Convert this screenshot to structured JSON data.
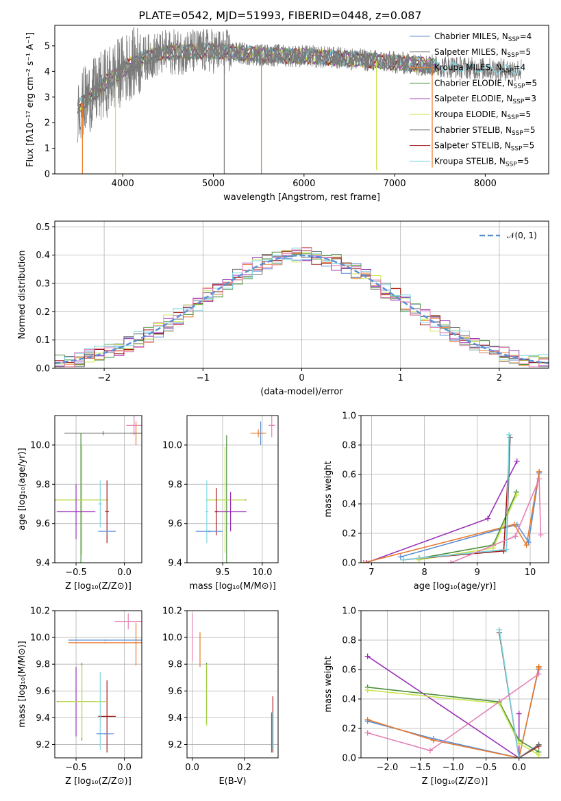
{
  "colors": {
    "chabrier_miles": "#5b8fd6",
    "salpeter_miles": "#7a7a7a",
    "kroupa_miles": "#e8792a",
    "chabrier_elodie": "#4c8f3c",
    "salpeter_elodie": "#9b30b8",
    "kroupa_elodie": "#c8e64a",
    "chabrier_stelib": "#6d6d6d",
    "salpeter_stelib": "#a01818",
    "kroupa_stelib": "#7fd6e0",
    "pink": "#e57fb4",
    "normal": "#5b8fd6"
  },
  "chart_data": [
    {
      "id": "spectrum",
      "type": "line",
      "title": "PLATE=0542, MJD=51993, FIBERID=0448, z=0.087",
      "xlabel": "wavelength [Angstrom, rest frame]",
      "ylabel": "Flux [fλ10⁻¹⁷ erg cm⁻² s⁻¹ A⁻¹]",
      "xlim": [
        3250,
        8700
      ],
      "ylim": [
        0,
        5.8
      ],
      "xticks": [
        "4000",
        "5000",
        "6000",
        "7000",
        "8000"
      ],
      "xtick_values": [
        4000,
        5000,
        6000,
        7000,
        8000
      ],
      "yticks": [
        "0",
        "1",
        "2",
        "3",
        "4",
        "5"
      ],
      "ytick_values": [
        0,
        1,
        2,
        3,
        4,
        5
      ],
      "grid": false,
      "legend_loc": "top-right",
      "legend": [
        {
          "label": "Chabrier MILES, N",
          "sub": "SSP",
          "n": "=4",
          "color_key": "chabrier_miles"
        },
        {
          "label": "Salpeter MILES, N",
          "sub": "SSP",
          "n": "=5",
          "color_key": "salpeter_miles"
        },
        {
          "label": "Kroupa MILES, N",
          "sub": "SSP",
          "n": "=4",
          "color_key": "kroupa_miles"
        },
        {
          "label": "Chabrier ELODIE, N",
          "sub": "SSP",
          "n": "=5",
          "color_key": "chabrier_elodie"
        },
        {
          "label": "Salpeter ELODIE, N",
          "sub": "SSP",
          "n": "=3",
          "color_key": "salpeter_elodie"
        },
        {
          "label": "Kroupa ELODIE, N",
          "sub": "SSP",
          "n": "=5",
          "color_key": "kroupa_elodie"
        },
        {
          "label": "Chabrier STELIB, N",
          "sub": "SSP",
          "n": "=5",
          "color_key": "chabrier_stelib"
        },
        {
          "label": "Salpeter STELIB, N",
          "sub": "SSP",
          "n": "=5",
          "color_key": "salpeter_stelib"
        },
        {
          "label": "Kroupa STELIB, N",
          "sub": "SSP",
          "n": "=5",
          "color_key": "kroupa_stelib"
        }
      ],
      "data_range": [
        3500,
        8400
      ],
      "continuum": [
        [
          3500,
          2.6
        ],
        [
          3700,
          3.2
        ],
        [
          3900,
          3.8
        ],
        [
          4100,
          4.3
        ],
        [
          4300,
          4.6
        ],
        [
          4500,
          4.75
        ],
        [
          5000,
          4.8
        ],
        [
          5500,
          4.65
        ],
        [
          6000,
          4.6
        ],
        [
          6500,
          4.5
        ],
        [
          7000,
          4.35
        ],
        [
          7500,
          4.2
        ],
        [
          8000,
          4.1
        ],
        [
          8400,
          4.05
        ]
      ],
      "dips": [
        {
          "x": 3555,
          "to": 0.0,
          "color_key": "kroupa_miles"
        },
        {
          "x": 3920,
          "to": 0.0,
          "color_key": "kroupa_elodie"
        },
        {
          "x": 5120,
          "to": 0.0,
          "color_key": "salpeter_miles"
        },
        {
          "x": 5530,
          "to": 0.0,
          "color_key": "kroupa_miles"
        },
        {
          "x": 6800,
          "to": 0.15,
          "color_key": "kroupa_elodie"
        },
        {
          "x": 7415,
          "to": 0.25,
          "color_key": "kroupa_miles"
        }
      ]
    },
    {
      "id": "residuals",
      "type": "histogram",
      "xlabel": "(data-model)/error",
      "ylabel": "Normed distribution",
      "xlim": [
        -2.5,
        2.5
      ],
      "ylim": [
        0,
        0.52
      ],
      "xticks": [
        "−2",
        "−1",
        "0",
        "1",
        "2"
      ],
      "xtick_values": [
        -2,
        -1,
        0,
        1,
        2
      ],
      "yticks": [
        "0.0",
        "0.1",
        "0.2",
        "0.3",
        "0.4",
        "0.5"
      ],
      "ytick_values": [
        0,
        0.1,
        0.2,
        0.3,
        0.4,
        0.5
      ],
      "grid": true,
      "legend_loc": "top-right",
      "legend_label": "𝒩(0, 1)",
      "bin_width": 0.1,
      "series_keys": [
        "chabrier_miles",
        "kroupa_miles",
        "chabrier_elodie",
        "salpeter_elodie",
        "kroupa_elodie",
        "chabrier_stelib",
        "salpeter_stelib",
        "kroupa_stelib",
        "pink"
      ]
    },
    {
      "id": "age-vs-Z",
      "type": "errorbar",
      "xlabel": "Z [log₁₀(Z/Z⊙)]",
      "ylabel": "age  [log₁₀(age/yr)]",
      "xlim": [
        -0.72,
        0.18
      ],
      "ylim": [
        9.4,
        10.15
      ],
      "xticks": [
        "−0.5",
        "0.0"
      ],
      "xtick_values": [
        -0.5,
        0.0
      ],
      "yticks": [
        "9.4",
        "9.6",
        "9.8",
        "10.0"
      ],
      "ytick_values": [
        9.4,
        9.6,
        9.8,
        10.0
      ],
      "grid": true,
      "points": [
        {
          "x": 0.1,
          "y": 10.1,
          "xerr": 0.08,
          "yerr": 0.05,
          "color_key": "pink"
        },
        {
          "x": 0.12,
          "y": 10.06,
          "xerr": 0.06,
          "yerr": 0.06,
          "color_key": "kroupa_miles"
        },
        {
          "x": -0.22,
          "y": 10.06,
          "xerr": 0.4,
          "yerr": 0.01,
          "color_key": "chabrier_stelib"
        },
        {
          "x": -0.45,
          "y": 9.72,
          "xerr": 0.28,
          "yerr": 0.34,
          "color_key": "chabrier_elodie"
        },
        {
          "x": -0.44,
          "y": 9.72,
          "xerr": 0.27,
          "yerr": 0.28,
          "color_key": "kroupa_elodie"
        },
        {
          "x": -0.5,
          "y": 9.66,
          "xerr": 0.2,
          "yerr": 0.14,
          "color_key": "salpeter_elodie"
        },
        {
          "x": -0.25,
          "y": 9.7,
          "xerr": 0.02,
          "yerr": 0.12,
          "color_key": "kroupa_stelib"
        },
        {
          "x": -0.18,
          "y": 9.66,
          "xerr": 0.02,
          "yerr": 0.16,
          "color_key": "salpeter_stelib"
        },
        {
          "x": -0.18,
          "y": 9.56,
          "xerr": 0.09,
          "yerr": 0.005,
          "color_key": "chabrier_miles"
        }
      ]
    },
    {
      "id": "age-vs-mass",
      "type": "errorbar",
      "xlabel": "mass [log₁₀(M/M⊙)]",
      "ylabel": "",
      "xlim": [
        9.05,
        10.2
      ],
      "ylim": [
        9.4,
        10.15
      ],
      "xticks": [
        "9.5",
        "10.0"
      ],
      "xtick_values": [
        9.5,
        10.0
      ],
      "yticks": [
        "9.4",
        "9.6",
        "9.8",
        "10.0"
      ],
      "ytick_values": [
        9.4,
        9.6,
        9.8,
        10.0
      ],
      "grid": true,
      "points": [
        {
          "x": 10.12,
          "y": 10.1,
          "xerr": 0.04,
          "yerr": 0.06,
          "color_key": "pink"
        },
        {
          "x": 9.98,
          "y": 10.06,
          "xerr": 0.04,
          "yerr": 0.06,
          "color_key": "chabrier_miles"
        },
        {
          "x": 9.95,
          "y": 10.06,
          "xerr": 0.1,
          "yerr": 0.02,
          "color_key": "kroupa_miles"
        },
        {
          "x": 9.55,
          "y": 9.72,
          "xerr": 0.25,
          "yerr": 0.33,
          "color_key": "chabrier_elodie"
        },
        {
          "x": 9.53,
          "y": 9.72,
          "xerr": 0.25,
          "yerr": 0.27,
          "color_key": "kroupa_elodie"
        },
        {
          "x": 9.6,
          "y": 9.66,
          "xerr": 0.2,
          "yerr": 0.1,
          "color_key": "salpeter_elodie"
        },
        {
          "x": 9.3,
          "y": 9.66,
          "xerr": 0.02,
          "yerr": 0.16,
          "color_key": "kroupa_stelib"
        },
        {
          "x": 9.42,
          "y": 9.66,
          "xerr": 0.02,
          "yerr": 0.12,
          "color_key": "salpeter_stelib"
        },
        {
          "x": 9.33,
          "y": 9.56,
          "xerr": 0.17,
          "yerr": 0.005,
          "color_key": "chabrier_miles"
        }
      ]
    },
    {
      "id": "mass-weight-vs-age",
      "type": "line",
      "xlabel": "age  [log₁₀(age/yr)]",
      "ylabel": "mass weight",
      "xlim": [
        6.8,
        10.35
      ],
      "ylim": [
        0,
        1.0
      ],
      "xticks": [
        "7",
        "8",
        "9",
        "10"
      ],
      "xtick_values": [
        7,
        8,
        9,
        10
      ],
      "yticks": [
        "0.0",
        "0.2",
        "0.4",
        "0.6",
        "0.8",
        "1.0"
      ],
      "ytick_values": [
        0,
        0.2,
        0.4,
        0.6,
        0.8,
        1.0
      ],
      "grid": true,
      "series": [
        {
          "color_key": "salpeter_elodie",
          "x": [
            6.9,
            9.2,
            9.75
          ],
          "y": [
            0.0,
            0.3,
            0.69
          ]
        },
        {
          "color_key": "chabrier_miles",
          "x": [
            7.55,
            9.75,
            9.97,
            10.17
          ],
          "y": [
            0.04,
            0.26,
            0.14,
            0.61
          ]
        },
        {
          "color_key": "kroupa_miles",
          "x": [
            6.85,
            9.7,
            9.93,
            10.17
          ],
          "y": [
            0.0,
            0.26,
            0.12,
            0.62
          ]
        },
        {
          "color_key": "chabrier_elodie",
          "x": [
            7.9,
            9.3,
            9.74
          ],
          "y": [
            0.03,
            0.12,
            0.48
          ]
        },
        {
          "color_key": "kroupa_elodie",
          "x": [
            7.9,
            9.3,
            9.74
          ],
          "y": [
            0.02,
            0.1,
            0.46
          ]
        },
        {
          "color_key": "salpeter_stelib",
          "x": [
            7.6,
            9.5,
            9.62
          ],
          "y": [
            0.02,
            0.08,
            0.85
          ]
        },
        {
          "color_key": "chabrier_stelib",
          "x": [
            7.6,
            9.55,
            9.62
          ],
          "y": [
            0.02,
            0.09,
            0.85
          ]
        },
        {
          "color_key": "kroupa_stelib",
          "x": [
            7.6,
            9.55,
            9.6
          ],
          "y": [
            0.02,
            0.09,
            0.87
          ]
        },
        {
          "color_key": "pink",
          "x": [
            8.5,
            9.72,
            10.17,
            10.2
          ],
          "y": [
            0.0,
            0.18,
            0.57,
            0.19
          ]
        }
      ]
    },
    {
      "id": "mass-vs-Z",
      "type": "errorbar",
      "xlabel": "Z [log₁₀(Z/Z⊙)]",
      "ylabel": "mass [log₁₀(M/M⊙)]",
      "xlim": [
        -0.72,
        0.18
      ],
      "ylim": [
        9.1,
        10.2
      ],
      "xticks": [
        "−0.5",
        "0.0"
      ],
      "xtick_values": [
        -0.5,
        0.0
      ],
      "yticks": [
        "9.2",
        "9.4",
        "9.6",
        "9.8",
        "10.0",
        "10.2"
      ],
      "ytick_values": [
        9.2,
        9.4,
        9.6,
        9.8,
        10.0,
        10.2
      ],
      "grid": true,
      "points": [
        {
          "x": 0.04,
          "y": 10.12,
          "xerr": 0.14,
          "yerr": 0.06,
          "color_key": "pink"
        },
        {
          "x": -0.2,
          "y": 9.98,
          "xerr": 0.38,
          "yerr": 0.005,
          "color_key": "chabrier_miles"
        },
        {
          "x": -0.2,
          "y": 9.96,
          "xerr": 0.38,
          "yerr": 0.005,
          "color_key": "kroupa_miles"
        },
        {
          "x": 0.12,
          "y": 9.95,
          "xerr": 0.005,
          "yerr": 0.16,
          "color_key": "kroupa_miles"
        },
        {
          "x": -0.5,
          "y": 9.52,
          "xerr": 0.2,
          "yerr": 0.26,
          "color_key": "salpeter_elodie"
        },
        {
          "x": -0.44,
          "y": 9.52,
          "xerr": 0.25,
          "yerr": 0.29,
          "color_key": "chabrier_elodie"
        },
        {
          "x": -0.44,
          "y": 9.52,
          "xerr": 0.25,
          "yerr": 0.27,
          "color_key": "kroupa_elodie"
        },
        {
          "x": -0.18,
          "y": 9.41,
          "xerr": 0.09,
          "yerr": 0.27,
          "color_key": "salpeter_stelib"
        },
        {
          "x": -0.25,
          "y": 9.45,
          "xerr": 0.005,
          "yerr": 0.29,
          "color_key": "kroupa_stelib"
        },
        {
          "x": -0.2,
          "y": 9.28,
          "xerr": 0.09,
          "yerr": 0.005,
          "color_key": "chabrier_miles"
        }
      ]
    },
    {
      "id": "mass-vs-ebv",
      "type": "errorbar",
      "xlabel": "E(B-V)",
      "ylabel": "",
      "xlim": [
        -0.02,
        0.33
      ],
      "ylim": [
        9.1,
        10.2
      ],
      "xticks": [
        "0.0",
        "0.2"
      ],
      "xtick_values": [
        0.0,
        0.2
      ],
      "yticks": [
        "9.2",
        "9.4",
        "9.6",
        "9.8",
        "10.0",
        "10.2"
      ],
      "ytick_values": [
        9.2,
        9.4,
        9.6,
        9.8,
        10.0,
        10.2
      ],
      "grid": true,
      "points": [
        {
          "x": 0.0,
          "y": 10.0,
          "xerr": 0.0,
          "yerr": 0.18,
          "color_key": "pink"
        },
        {
          "x": 0.03,
          "y": 9.91,
          "xerr": 0.0,
          "yerr": 0.13,
          "color_key": "kroupa_miles"
        },
        {
          "x": 0.055,
          "y": 9.58,
          "xerr": 0.0,
          "yerr": 0.23,
          "color_key": "chabrier_elodie"
        },
        {
          "x": 0.056,
          "y": 9.57,
          "xerr": 0.0,
          "yerr": 0.23,
          "color_key": "kroupa_elodie"
        },
        {
          "x": 0.31,
          "y": 9.35,
          "xerr": 0.0,
          "yerr": 0.21,
          "color_key": "salpeter_stelib"
        },
        {
          "x": 0.305,
          "y": 9.29,
          "xerr": 0.0,
          "yerr": 0.15,
          "color_key": "chabrier_stelib"
        },
        {
          "x": 0.308,
          "y": 9.3,
          "xerr": 0.0,
          "yerr": 0.14,
          "color_key": "kroupa_stelib"
        }
      ]
    },
    {
      "id": "mass-weight-vs-Z",
      "type": "line",
      "xlabel": "Z [log₁₀(Z/Z⊙)]",
      "ylabel": "mass weight",
      "xlim": [
        -2.4,
        0.45
      ],
      "ylim": [
        0,
        1.0
      ],
      "xticks": [
        "−2.0",
        "−1.5",
        "−1.0",
        "−0.5",
        "0.0"
      ],
      "xtick_values": [
        -2.0,
        -1.5,
        -1.0,
        -0.5,
        0.0
      ],
      "yticks": [
        "0.0",
        "0.2",
        "0.4",
        "0.6",
        "0.8",
        "1.0"
      ],
      "ytick_values": [
        0,
        0.2,
        0.4,
        0.6,
        0.8,
        1.0
      ],
      "grid": true,
      "series": [
        {
          "color_key": "salpeter_elodie",
          "x": [
            -2.3,
            0.0,
            0.0
          ],
          "y": [
            0.69,
            0.0,
            0.3
          ]
        },
        {
          "color_key": "chabrier_miles",
          "x": [
            -2.3,
            -1.3,
            0.0,
            0.3,
            0.3
          ],
          "y": [
            0.25,
            0.13,
            0.0,
            0.61,
            0.6
          ]
        },
        {
          "color_key": "kroupa_miles",
          "x": [
            -2.3,
            -1.3,
            0.0,
            0.3,
            0.3
          ],
          "y": [
            0.26,
            0.12,
            0.0,
            0.62,
            0.61
          ]
        },
        {
          "color_key": "chabrier_elodie",
          "x": [
            -2.3,
            -0.3,
            0.0,
            0.3
          ],
          "y": [
            0.48,
            0.38,
            0.12,
            0.04
          ]
        },
        {
          "color_key": "kroupa_elodie",
          "x": [
            -2.3,
            -0.3,
            0.0,
            0.3
          ],
          "y": [
            0.46,
            0.37,
            0.1,
            0.02
          ]
        },
        {
          "color_key": "salpeter_stelib",
          "x": [
            -0.3,
            0.0,
            0.3
          ],
          "y": [
            0.85,
            0.0,
            0.08
          ]
        },
        {
          "color_key": "chabrier_stelib",
          "x": [
            -0.3,
            0.0,
            0.3
          ],
          "y": [
            0.85,
            0.0,
            0.09
          ]
        },
        {
          "color_key": "kroupa_stelib",
          "x": [
            -0.3,
            0.0
          ],
          "y": [
            0.87,
            0.0
          ]
        },
        {
          "color_key": "pink",
          "x": [
            -2.3,
            -1.35,
            0.3
          ],
          "y": [
            0.17,
            0.05,
            0.57
          ]
        }
      ]
    }
  ]
}
